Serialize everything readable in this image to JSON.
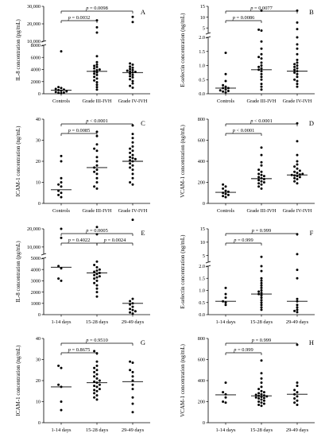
{
  "chart_data": [
    {
      "panel": "A",
      "type": "scatter",
      "ylabel": "IL-8 concentration (pg/mL)",
      "categories": [
        "Controls",
        "Grade III-IVH",
        "Grade IV-IVH"
      ],
      "yticks_lower": [
        "0",
        "2000",
        "4000",
        "6000",
        "8000"
      ],
      "yticks_upper": [
        "10,000",
        "20,000",
        "30,000"
      ],
      "break": {
        "lower_max": 8000,
        "upper_min": 10000
      },
      "points": [
        [
          7000,
          1100,
          950,
          800,
          700,
          600,
          500,
          400,
          300,
          200,
          150,
          100
        ],
        [
          22000,
          18000,
          15000,
          6200,
          5200,
          4800,
          4600,
          4400,
          4200,
          4000,
          3900,
          3700,
          3500,
          3300,
          3100,
          2800,
          2500,
          2200,
          1900,
          1500,
          1100,
          700
        ],
        [
          24000,
          21000,
          5000,
          4800,
          4500,
          4300,
          4100,
          3900,
          3800,
          3700,
          3600,
          3500,
          3300,
          3100,
          2900,
          2700,
          2400,
          2100,
          1700,
          1300,
          1000
        ]
      ],
      "medians": [
        600,
        3700,
        3500
      ],
      "brackets": [
        {
          "from": 0,
          "to": 1,
          "label": "p = 0.0032"
        },
        {
          "from": 0,
          "to": 2,
          "label": "p = 0.0098"
        }
      ]
    },
    {
      "panel": "B",
      "type": "scatter",
      "ylabel": "E-selectin concentration (ng/mL)",
      "categories": [
        "Controls",
        "Grade III-IVH",
        "Grade IV-IVH"
      ],
      "yticks_lower": [
        "0.0",
        "0.5",
        "1.0",
        "1.5",
        "2.0"
      ],
      "yticks_upper": [
        "5",
        "10",
        "15"
      ],
      "break": {
        "lower_max": 2.0,
        "upper_min": 2.5
      },
      "points": [
        [
          1.45,
          0.7,
          0.45,
          0.3,
          0.25,
          0.2,
          0.2,
          0.15,
          0.12,
          0.1,
          0.08,
          0.05
        ],
        [
          13,
          4.2,
          3.8,
          1.85,
          1.6,
          1.4,
          1.3,
          1.25,
          1.1,
          1.0,
          0.95,
          0.9,
          0.85,
          0.8,
          0.7,
          0.6,
          0.5,
          0.35,
          0.25,
          0.15
        ],
        [
          13,
          7.5,
          4.5,
          2.0,
          1.75,
          1.6,
          1.4,
          1.2,
          1.1,
          1.05,
          1.0,
          0.95,
          0.9,
          0.85,
          0.8,
          0.75,
          0.7,
          0.6,
          0.5,
          0.45,
          0.35,
          0.25
        ]
      ],
      "medians": [
        0.2,
        0.85,
        0.8
      ],
      "brackets": [
        {
          "from": 0,
          "to": 1,
          "label": "p = 0.0086"
        },
        {
          "from": 0,
          "to": 2,
          "label": "p = 0.0077"
        }
      ]
    },
    {
      "panel": "C",
      "type": "scatter",
      "ylabel": "ICAM-1 concentration (ng/mL)",
      "categories": [
        "Controls",
        "Grade III-IVH",
        "Grade IV-IVH"
      ],
      "ylim": [
        0,
        40
      ],
      "yticks": [
        "0",
        "10",
        "20",
        "30",
        "40"
      ],
      "points": [
        [
          22.5,
          20,
          12,
          10,
          9,
          8,
          6,
          5,
          4,
          3
        ],
        [
          34,
          32,
          28,
          26,
          25,
          22,
          20,
          18,
          17,
          16,
          15,
          14,
          12,
          10,
          8,
          7
        ],
        [
          37,
          33,
          31,
          29,
          27,
          26,
          25,
          24,
          23,
          22,
          21.5,
          21,
          20.5,
          20,
          19,
          18,
          17,
          16,
          14,
          12,
          10,
          9
        ]
      ],
      "medians": [
        6.5,
        17,
        20
      ],
      "brackets": [
        {
          "from": 0,
          "to": 1,
          "label": "p = 0.0085"
        },
        {
          "from": 0,
          "to": 2,
          "label": "p < 0.0001"
        }
      ]
    },
    {
      "panel": "D",
      "type": "scatter",
      "ylabel": "VCAM-1 concentration (ng/mL)",
      "categories": [
        "Controls",
        "Grade III-IVH",
        "Grade IV-IVH"
      ],
      "ylim": [
        0,
        800
      ],
      "yticks": [
        "0",
        "200",
        "400",
        "600",
        "800"
      ],
      "points": [
        [
          180,
          160,
          140,
          120,
          110,
          100,
          90,
          80,
          70,
          60
        ],
        [
          530,
          460,
          390,
          360,
          320,
          300,
          280,
          270,
          260,
          250,
          240,
          230,
          220,
          210,
          200,
          190,
          180,
          160,
          140
        ],
        [
          760,
          590,
          460,
          400,
          370,
          350,
          330,
          310,
          300,
          290,
          280,
          275,
          270,
          265,
          260,
          250,
          240,
          230,
          210,
          190
        ]
      ],
      "medians": [
        105,
        235,
        270
      ],
      "brackets": [
        {
          "from": 0,
          "to": 1,
          "label": "p < 0.0001"
        },
        {
          "from": 0,
          "to": 2,
          "label": "p < 0.0001"
        }
      ]
    },
    {
      "panel": "E",
      "type": "scatter",
      "ylabel": "IL-8 concentration (pg/mL)",
      "categories": [
        "1-14 days",
        "15-28 days",
        "29-49 days"
      ],
      "yticks_lower": [
        "0",
        "1000",
        "2000",
        "3000",
        "4000",
        "5000"
      ],
      "yticks_upper": [
        "10,000",
        "20,000"
      ],
      "break": {
        "lower_max": 5000,
        "upper_min": 6000
      },
      "points": [
        [
          20000,
          15000,
          4300,
          4100,
          3200,
          3000
        ],
        [
          21000,
          17000,
          4700,
          4400,
          4200,
          4000,
          3900,
          3800,
          3700,
          3600,
          3500,
          3400,
          3300,
          3200,
          3000,
          2800,
          2600,
          2300,
          2000,
          1600
        ],
        [
          25000,
          1400,
          1200,
          1000,
          900,
          700,
          500,
          400,
          300,
          200,
          100
        ]
      ],
      "medians": [
        4200,
        3700,
        1000
      ],
      "brackets": [
        {
          "from": 0,
          "to": 1,
          "label": "p = 0.4022"
        },
        {
          "from": 1,
          "to": 2,
          "label": "p = 0.0024"
        },
        {
          "from": 0,
          "to": 2,
          "label": "p = 0.0005"
        }
      ]
    },
    {
      "panel": "F",
      "type": "scatter",
      "ylabel": "E-selectin concentration (ng/mL)",
      "categories": [
        "1-14 days",
        "15-28 days",
        "29-49 days"
      ],
      "yticks_lower": [
        "0.0",
        "0.5",
        "1.0",
        "1.5",
        "2.0"
      ],
      "yticks_upper": [
        "5",
        "10",
        "15"
      ],
      "break": {
        "lower_max": 2.0,
        "upper_min": 2.5
      },
      "points": [
        [
          1.1,
          0.85,
          0.7,
          0.55,
          0.5,
          0.4
        ],
        [
          4.5,
          2.0,
          1.8,
          1.5,
          1.4,
          1.3,
          1.2,
          1.1,
          1.0,
          0.95,
          0.9,
          0.85,
          0.8,
          0.7,
          0.6,
          0.5,
          0.4,
          0.3,
          0.2
        ],
        [
          13,
          5.5,
          1.85,
          1.5,
          0.65,
          0.55,
          0.4,
          0.3,
          0.2,
          0.15,
          0.1
        ]
      ],
      "medians": [
        0.55,
        0.85,
        0.55
      ],
      "brackets": [
        {
          "from": 0,
          "to": 1,
          "label": "p = 0.999"
        },
        {
          "from": 0,
          "to": 2,
          "label": "p = 0.999"
        }
      ]
    },
    {
      "panel": "G",
      "type": "scatter",
      "ylabel": "ICAM-1 concentration (ng/mL)",
      "categories": [
        "1-14 days",
        "15-28 days",
        "29-49 days"
      ],
      "ylim": [
        0,
        40
      ],
      "yticks": [
        "0",
        "10",
        "20",
        "30",
        "40"
      ],
      "points": [
        [
          27,
          26,
          18,
          17,
          10,
          6
        ],
        [
          34,
          33,
          29,
          27,
          26,
          25,
          24,
          23,
          22,
          21,
          20,
          19.5,
          19,
          18,
          17.5,
          17,
          16,
          15.5,
          15,
          14,
          13,
          12,
          11
        ],
        [
          29,
          28.5,
          25,
          24,
          22,
          20,
          18,
          16,
          12,
          9,
          5
        ]
      ],
      "medians": [
        17,
        19,
        19.5
      ],
      "brackets": [
        {
          "from": 0,
          "to": 1,
          "label": "p = 0.8675"
        },
        {
          "from": 0,
          "to": 2,
          "label": "p = 0.9510"
        }
      ]
    },
    {
      "panel": "H",
      "type": "scatter",
      "ylabel": "VCAM-1 concentration (ng/mL)",
      "categories": [
        "1-14 days",
        "15-28 days",
        "29-49 days"
      ],
      "ylim": [
        0,
        800
      ],
      "yticks": [
        "0",
        "200",
        "400",
        "600",
        "800"
      ],
      "points": [
        [
          380,
          290,
          270,
          240,
          200,
          190
        ],
        [
          590,
          470,
          420,
          380,
          340,
          320,
          300,
          290,
          280,
          270,
          265,
          260,
          255,
          250,
          245,
          240,
          235,
          230,
          220,
          210,
          200,
          190,
          180,
          170,
          160
        ],
        [
          740,
          380,
          350,
          310,
          290,
          270,
          250,
          230,
          210,
          190,
          170
        ]
      ],
      "medians": [
        265,
        255,
        270
      ],
      "brackets": [
        {
          "from": 0,
          "to": 1,
          "label": "p = 0.999"
        },
        {
          "from": 0,
          "to": 2,
          "label": "p = 0.999"
        }
      ]
    }
  ]
}
